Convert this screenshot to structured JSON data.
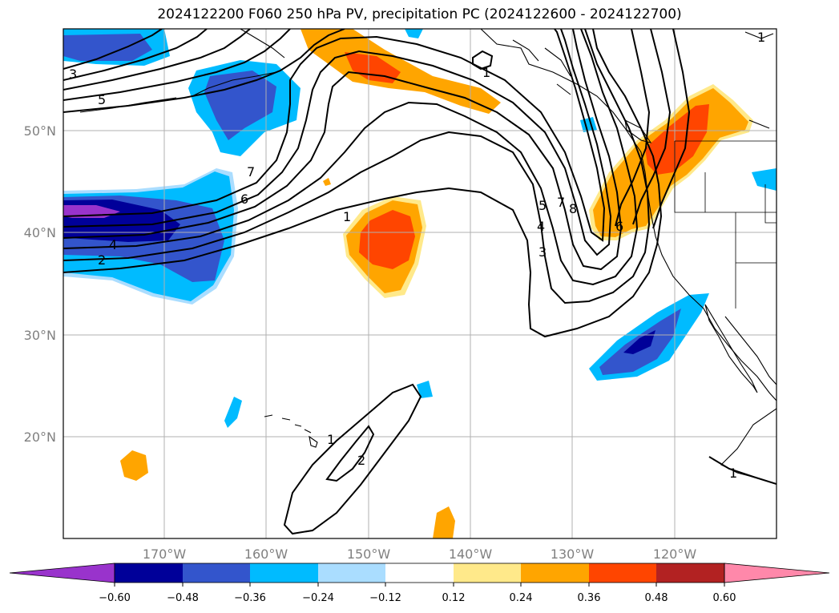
{
  "title": "2024122200 F060 250 hPa PV, precipitation PC (2024122600 - 2024122700)",
  "lat_labels": [
    "50°N",
    "40°N",
    "30°N",
    "20°N"
  ],
  "lon_labels": [
    "170°W",
    "160°W",
    "150°W",
    "140°W",
    "130°W",
    "120°W"
  ],
  "colorbar": {
    "ticks": [
      "−0.60",
      "−0.48",
      "−0.36",
      "−0.24",
      "−0.12",
      "0.12",
      "0.24",
      "0.36",
      "0.48",
      "0.60"
    ],
    "colors": {
      "below": "#9933cc",
      "b1": "#000099",
      "b2": "#3355cc",
      "b3": "#00bbff",
      "b4": "#aaddff",
      "neutral": "#ffffff",
      "p1": "#ffe98a",
      "p2": "#ffa500",
      "p3": "#ff4500",
      "p4": "#b22222",
      "above": "#ff88aa"
    }
  },
  "contour_labels": [
    "5",
    "7",
    "6",
    "4",
    "2",
    "1",
    "1",
    "2",
    "1",
    "5",
    "4",
    "3",
    "7",
    "8",
    "6",
    "1",
    "1",
    "3"
  ]
}
